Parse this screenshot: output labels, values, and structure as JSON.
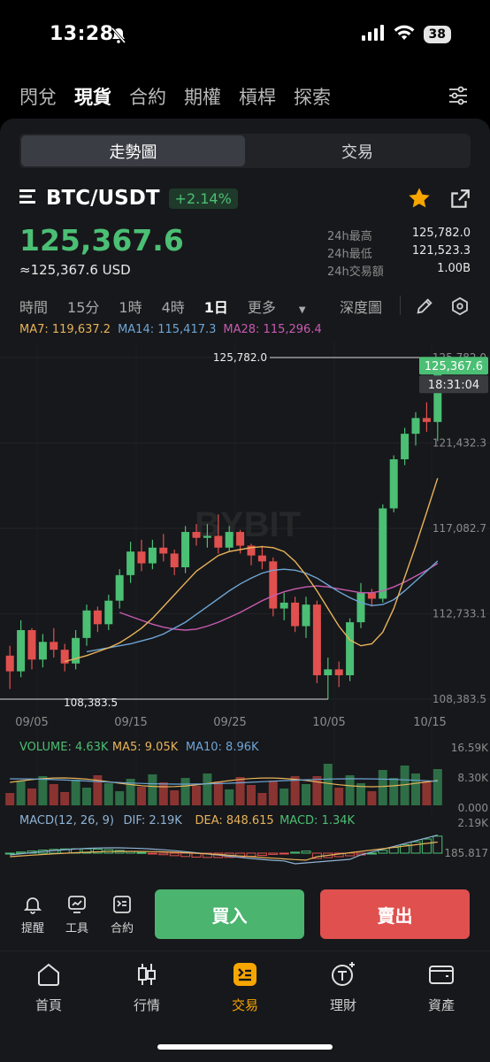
{
  "status": {
    "time": "13:28",
    "battery": "38"
  },
  "top_tabs": [
    {
      "label": "閃兌",
      "active": false
    },
    {
      "label": "現貨",
      "active": true
    },
    {
      "label": "合約",
      "active": false
    },
    {
      "label": "期權",
      "active": false
    },
    {
      "label": "槓桿",
      "active": false
    },
    {
      "label": "探索",
      "active": false
    }
  ],
  "segment": {
    "left": "走勢圖",
    "right": "交易"
  },
  "pair": {
    "name": "BTC/USDT",
    "change": "+2.14%"
  },
  "price": {
    "last": "125,367.6",
    "usd": "≈125,367.6 USD"
  },
  "stats": [
    {
      "label": "24h最高",
      "value": "125,782.0"
    },
    {
      "label": "24h最低",
      "value": "121,523.3"
    },
    {
      "label": "24h交易額",
      "value": "1.00B"
    }
  ],
  "intervals": [
    {
      "label": "時間",
      "active": false
    },
    {
      "label": "15分",
      "active": false
    },
    {
      "label": "1時",
      "active": false
    },
    {
      "label": "4時",
      "active": false
    },
    {
      "label": "1日",
      "active": true
    },
    {
      "label": "更多",
      "active": false
    }
  ],
  "depth_label": "深度圖",
  "ma_legend": {
    "ma7": "MA7: 119,637.2",
    "ma14": "MA14: 115,417.3",
    "ma28": "MA28: 115,296.4"
  },
  "colors": {
    "up": "#4bbf74",
    "down": "#e0504e",
    "ma7": "#e8b35a",
    "ma14": "#6ea5d6",
    "ma28": "#c75bb1",
    "accent": "#f7a600"
  },
  "chart_data": {
    "type": "candlestick",
    "y_ticks": [
      "125,782.0",
      "121,432.3",
      "117,082.7",
      "112,733.1",
      "108,383.5"
    ],
    "x_ticks": [
      "09/05",
      "09/15",
      "09/25",
      "10/05",
      "10/15"
    ],
    "high_label": "125,782.0",
    "low_label": "108,383.5",
    "last_price_tag": "125,367.6",
    "countdown_tag": "18:31:04",
    "watermark": "BYBIT",
    "candles": [
      [
        110600,
        111100,
        108900,
        109800
      ],
      [
        109800,
        112400,
        109500,
        111900
      ],
      [
        111900,
        112000,
        109900,
        110400
      ],
      [
        110400,
        111700,
        110000,
        111300
      ],
      [
        111300,
        112000,
        110500,
        110900
      ],
      [
        110900,
        111200,
        109800,
        110200
      ],
      [
        110200,
        111900,
        109900,
        111500
      ],
      [
        111500,
        113200,
        111100,
        112900
      ],
      [
        112900,
        113100,
        111800,
        112200
      ],
      [
        112200,
        113700,
        111900,
        113400
      ],
      [
        113400,
        115000,
        113000,
        114700
      ],
      [
        114700,
        116400,
        114300,
        115900
      ],
      [
        115900,
        116500,
        114900,
        115300
      ],
      [
        115300,
        116500,
        115000,
        116100
      ],
      [
        116100,
        116800,
        115400,
        115800
      ],
      [
        115800,
        116000,
        114700,
        115100
      ],
      [
        115100,
        117200,
        114800,
        116900
      ],
      [
        116900,
        117300,
        116200,
        116600
      ],
      [
        116600,
        117300,
        116100,
        116700
      ],
      [
        116700,
        117800,
        115800,
        116100
      ],
      [
        116100,
        117200,
        115900,
        116900
      ],
      [
        116900,
        117000,
        115800,
        116200
      ],
      [
        116200,
        116300,
        115200,
        115700
      ],
      [
        115700,
        116200,
        115000,
        115400
      ],
      [
        115400,
        115600,
        112600,
        113000
      ],
      [
        113000,
        113800,
        112400,
        113300
      ],
      [
        113300,
        113600,
        111800,
        112100
      ],
      [
        112100,
        113600,
        111500,
        113200
      ],
      [
        113200,
        113400,
        109200,
        109600
      ],
      [
        109600,
        110500,
        108383.5,
        109900
      ],
      [
        109900,
        110300,
        109000,
        109600
      ],
      [
        109600,
        112500,
        109300,
        112300
      ],
      [
        112300,
        114300,
        112000,
        113800
      ],
      [
        113800,
        114000,
        113100,
        113500
      ],
      [
        113500,
        118300,
        113300,
        118100
      ],
      [
        118100,
        120800,
        117900,
        120600
      ],
      [
        120600,
        122200,
        120300,
        121900
      ],
      [
        121900,
        123000,
        121300,
        122700
      ],
      [
        122700,
        123500,
        122000,
        122500
      ],
      [
        122500,
        125782,
        121523.3,
        125367.6
      ]
    ],
    "ma7": [
      110300,
      110450,
      110600,
      110800,
      111000,
      111250,
      111600,
      112000,
      112500,
      113100,
      113700,
      114300,
      114900,
      115300,
      115700,
      115900,
      116000,
      116100,
      116150,
      116100,
      115900,
      115400,
      114700,
      113900,
      113000,
      112100,
      111400,
      111100,
      111200,
      111800,
      113000,
      114600,
      116200,
      117900,
      119637.2
    ],
    "ma14": [
      110800,
      110900,
      111000,
      111100,
      111200,
      111350,
      111500,
      111700,
      112000,
      112300,
      112700,
      113100,
      113500,
      113900,
      114250,
      114550,
      114800,
      114950,
      115000,
      114950,
      114800,
      114550,
      114200,
      113850,
      113550,
      113300,
      113150,
      113200,
      113450,
      113900,
      114400,
      114900,
      115417.3
    ],
    "ma28": [
      112800,
      112600,
      112400,
      112200,
      112050,
      111950,
      111900,
      111950,
      112100,
      112300,
      112550,
      112800,
      113100,
      113400,
      113650,
      113850,
      114000,
      114100,
      114150,
      114100,
      114000,
      113900,
      113800,
      113800,
      113900,
      114100,
      114350,
      114650,
      114950,
      115296.4
    ],
    "volume_legend": {
      "volume": "VOLUME: 4.63K",
      "ma5": "MA5: 9.05K",
      "ma10": "MA10: 8.96K"
    },
    "volume_ticks": [
      "16.59K",
      "8.30K",
      "0.000"
    ],
    "macd_legend": {
      "params": "MACD(12, 26, 9)",
      "dif": "DIF: 2.19K",
      "dea": "DEA: 848.615",
      "macd": "MACD: 1.34K"
    },
    "macd_ticks": [
      "2.19K",
      "185.817"
    ]
  },
  "mini_tools": [
    {
      "label": "提醒",
      "icon": "bell-icon"
    },
    {
      "label": "工具",
      "icon": "chart-tool-icon"
    },
    {
      "label": "合約",
      "icon": "contract-icon"
    }
  ],
  "buy_label": "買入",
  "sell_label": "賣出",
  "bottom_nav": [
    {
      "label": "首頁",
      "icon": "home-icon",
      "active": false
    },
    {
      "label": "行情",
      "icon": "market-icon",
      "active": false
    },
    {
      "label": "交易",
      "icon": "trade-icon",
      "active": true
    },
    {
      "label": "理財",
      "icon": "earn-icon",
      "active": false
    },
    {
      "label": "資產",
      "icon": "wallet-icon",
      "active": false
    }
  ]
}
